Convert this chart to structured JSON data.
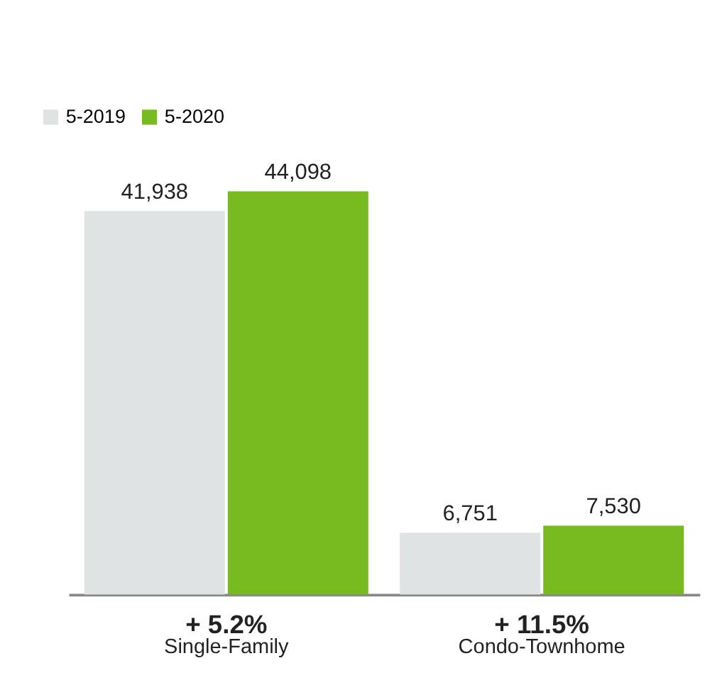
{
  "chart_data": {
    "type": "bar",
    "categories": [
      "Single-Family",
      "Condo-Townhome"
    ],
    "series": [
      {
        "name": "5-2019",
        "color": "#dfe3e4",
        "values": [
          41938,
          6751
        ],
        "value_labels": [
          "41,938",
          "6,751"
        ]
      },
      {
        "name": "5-2020",
        "color": "#78bb20",
        "values": [
          44098,
          7530
        ],
        "value_labels": [
          "44,098",
          "7,530"
        ]
      }
    ],
    "legend": "top left",
    "grid": false,
    "annotations": [
      "+ 5.2%",
      "+ 11.5%"
    ]
  }
}
